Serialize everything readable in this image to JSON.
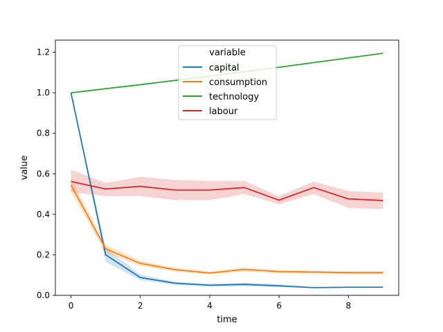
{
  "chart_data": {
    "type": "line",
    "xlabel": "time",
    "ylabel": "value",
    "xlim": [
      -0.45,
      9.45
    ],
    "ylim": [
      0,
      1.26
    ],
    "x_ticks": [
      0,
      2,
      4,
      6,
      8
    ],
    "y_ticks": [
      0.0,
      0.2,
      0.4,
      0.6,
      0.8,
      1.0,
      1.2
    ],
    "x_tick_labels": [
      "0",
      "2",
      "4",
      "6",
      "8"
    ],
    "y_tick_labels": [
      "0.0",
      "0.2",
      "0.4",
      "0.6",
      "0.8",
      "1.0",
      "1.2"
    ],
    "grid": false,
    "legend": {
      "title": "variable",
      "placement": "top-center"
    },
    "x": [
      0,
      1,
      2,
      3,
      4,
      5,
      6,
      7,
      8,
      9
    ],
    "series": [
      {
        "name": "capital",
        "color": "#1f77b4",
        "values": [
          1.0,
          0.2,
          0.088,
          0.06,
          0.05,
          0.054,
          0.047,
          0.038,
          0.04,
          0.04
        ],
        "ci_low": [
          1.0,
          0.165,
          0.075,
          0.052,
          0.043,
          0.046,
          0.04,
          0.036,
          0.037,
          0.037
        ],
        "ci_high": [
          1.0,
          0.235,
          0.103,
          0.067,
          0.057,
          0.062,
          0.055,
          0.04,
          0.043,
          0.043
        ]
      },
      {
        "name": "consumption",
        "color": "#ff7f0e",
        "values": [
          0.545,
          0.23,
          0.158,
          0.127,
          0.11,
          0.128,
          0.117,
          0.115,
          0.112,
          0.112
        ],
        "ci_low": [
          0.51,
          0.21,
          0.145,
          0.118,
          0.103,
          0.118,
          0.11,
          0.109,
          0.104,
          0.104
        ],
        "ci_high": [
          0.58,
          0.25,
          0.172,
          0.136,
          0.118,
          0.138,
          0.124,
          0.121,
          0.12,
          0.12
        ]
      },
      {
        "name": "technology",
        "color": "#2ca02c",
        "values": [
          1.0,
          1.02,
          1.04,
          1.061,
          1.082,
          1.104,
          1.126,
          1.149,
          1.172,
          1.195
        ],
        "ci_low": [
          1.0,
          1.02,
          1.04,
          1.061,
          1.082,
          1.104,
          1.126,
          1.149,
          1.172,
          1.195
        ],
        "ci_high": [
          1.0,
          1.02,
          1.04,
          1.061,
          1.082,
          1.104,
          1.126,
          1.149,
          1.172,
          1.195
        ]
      },
      {
        "name": "labour",
        "color": "#d62728",
        "values": [
          0.562,
          0.525,
          0.538,
          0.52,
          0.52,
          0.532,
          0.47,
          0.532,
          0.476,
          0.468
        ],
        "ci_low": [
          0.51,
          0.49,
          0.49,
          0.47,
          0.47,
          0.5,
          0.45,
          0.5,
          0.432,
          0.425
        ],
        "ci_high": [
          0.62,
          0.555,
          0.585,
          0.57,
          0.565,
          0.565,
          0.49,
          0.562,
          0.515,
          0.507
        ]
      }
    ]
  }
}
